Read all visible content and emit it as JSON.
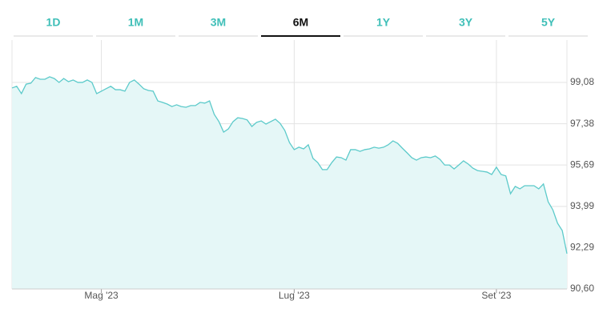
{
  "tabs": [
    {
      "label": "1D",
      "active": false
    },
    {
      "label": "1M",
      "active": false
    },
    {
      "label": "3M",
      "active": false
    },
    {
      "label": "6M",
      "active": true
    },
    {
      "label": "1Y",
      "active": false
    },
    {
      "label": "3Y",
      "active": false
    },
    {
      "label": "5Y",
      "active": false
    }
  ],
  "chart_data": {
    "type": "area",
    "color": "#5ccaca",
    "fill": "#e5f7f7",
    "grid": true,
    "categories": [
      null,
      null,
      null,
      null,
      null,
      null,
      null,
      null,
      null,
      null,
      null,
      null,
      null,
      null,
      null,
      null,
      null,
      null,
      null,
      "Mag '23",
      null,
      null,
      null,
      null,
      null,
      null,
      null,
      null,
      null,
      null,
      null,
      null,
      null,
      null,
      null,
      null,
      null,
      null,
      null,
      null,
      null,
      null,
      null,
      null,
      null,
      null,
      null,
      null,
      null,
      null,
      null,
      null,
      null,
      null,
      null,
      null,
      null,
      null,
      null,
      null,
      "Lug '23",
      null,
      null,
      null,
      null,
      null,
      null,
      null,
      null,
      null,
      null,
      null,
      null,
      null,
      null,
      null,
      null,
      null,
      null,
      null,
      null,
      null,
      null,
      null,
      null,
      null,
      null,
      null,
      null,
      null,
      null,
      null,
      null,
      null,
      null,
      null,
      null,
      null,
      null,
      null,
      null,
      null,
      null,
      "Set '23",
      null,
      null,
      null,
      null,
      null,
      null,
      null,
      null,
      null,
      null,
      null,
      null,
      null,
      null,
      null
    ],
    "values": [
      98.85,
      98.92,
      98.62,
      99.01,
      99.05,
      99.28,
      99.21,
      99.21,
      99.31,
      99.24,
      99.08,
      99.24,
      99.11,
      99.18,
      99.08,
      99.08,
      99.18,
      99.08,
      98.62,
      98.72,
      98.82,
      98.92,
      98.78,
      98.78,
      98.72,
      99.08,
      99.18,
      99.01,
      98.82,
      98.75,
      98.72,
      98.32,
      98.26,
      98.19,
      98.09,
      98.16,
      98.09,
      98.06,
      98.13,
      98.13,
      98.26,
      98.23,
      98.32,
      97.77,
      97.47,
      97.04,
      97.17,
      97.47,
      97.63,
      97.6,
      97.54,
      97.27,
      97.44,
      97.5,
      97.37,
      97.47,
      97.57,
      97.4,
      97.11,
      96.61,
      96.32,
      96.42,
      96.35,
      96.52,
      95.96,
      95.79,
      95.5,
      95.5,
      95.79,
      96.02,
      95.99,
      95.89,
      96.32,
      96.32,
      96.25,
      96.32,
      96.35,
      96.42,
      96.38,
      96.42,
      96.52,
      96.68,
      96.58,
      96.38,
      96.19,
      95.99,
      95.89,
      95.99,
      96.02,
      95.99,
      96.06,
      95.92,
      95.69,
      95.69,
      95.53,
      95.69,
      95.86,
      95.73,
      95.56,
      95.46,
      95.43,
      95.4,
      95.3,
      95.6,
      95.3,
      95.24,
      94.51,
      94.81,
      94.71,
      94.84,
      94.84,
      94.84,
      94.71,
      94.91,
      94.18,
      93.85,
      93.3,
      93.0,
      92.05
    ],
    "ylim": [
      90.6,
      100.82
    ],
    "yticks": [
      {
        "value": 90.6,
        "label": "90,60"
      },
      {
        "value": 92.29,
        "label": "92,29"
      },
      {
        "value": 93.99,
        "label": "93,99"
      },
      {
        "value": 95.69,
        "label": "95,69"
      },
      {
        "value": 97.38,
        "label": "97,38"
      },
      {
        "value": 99.08,
        "label": "99,08"
      }
    ]
  }
}
